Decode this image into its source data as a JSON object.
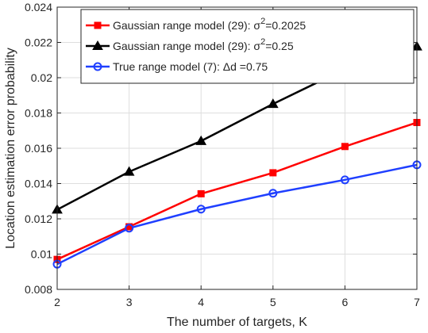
{
  "chart_data": {
    "type": "line",
    "xlabel": "The number of targets, K",
    "ylabel": "Location estimation error probability",
    "xlim": [
      2,
      7
    ],
    "ylim": [
      0.008,
      0.024
    ],
    "x_ticks": [
      2,
      3,
      4,
      5,
      6,
      7
    ],
    "y_ticks": [
      0.008,
      0.01,
      0.012,
      0.014,
      0.016,
      0.018,
      0.02,
      0.022,
      0.024
    ],
    "grid": true,
    "legend_position": "top-right",
    "x": [
      2,
      3,
      4,
      5,
      6,
      7
    ],
    "series": [
      {
        "name": "Gaussian range model (29): σ²=0.2025",
        "legend_prefix": "Gaussian range model (29): σ",
        "legend_sup": "2",
        "legend_suffix": "=0.2025",
        "color": "#ff0000",
        "marker": "square",
        "values": [
          0.0097,
          0.01155,
          0.01342,
          0.01461,
          0.0161,
          0.01746
        ]
      },
      {
        "name": "Gaussian range model (29): σ²=0.25",
        "legend_prefix": "Gaussian range model (29): σ",
        "legend_sup": "2",
        "legend_suffix": "=0.25",
        "color": "#000000",
        "marker": "triangle",
        "values": [
          0.01252,
          0.01467,
          0.01641,
          0.01851,
          0.02049,
          0.02177
        ]
      },
      {
        "name": "True range model (7): Δd =0.75",
        "legend_prefix": "True range model (7): Δd =0.75",
        "legend_sup": "",
        "legend_suffix": "",
        "color": "#1f3fff",
        "marker": "circle",
        "values": [
          0.00943,
          0.01147,
          0.01255,
          0.01345,
          0.01421,
          0.01506
        ]
      }
    ]
  }
}
